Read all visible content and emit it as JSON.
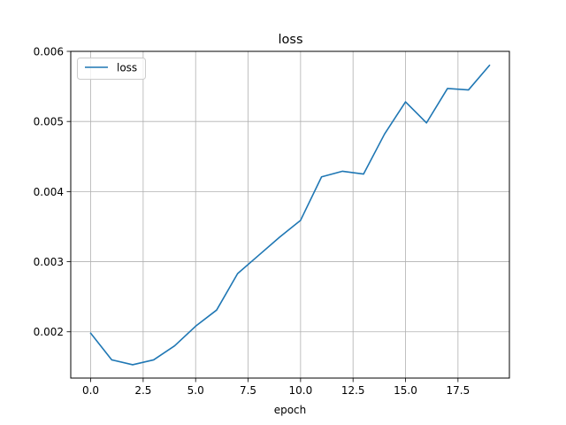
{
  "chart_data": {
    "type": "line",
    "title": "loss",
    "xlabel": "epoch",
    "ylabel": "",
    "xlim": [
      -0.95,
      19.95
    ],
    "ylim": [
      0.00134,
      0.006
    ],
    "grid": true,
    "legend_position": "top-left",
    "x_ticks": [
      0.0,
      2.5,
      5.0,
      7.5,
      10.0,
      12.5,
      15.0,
      17.5
    ],
    "x_tick_labels": [
      "0.0",
      "2.5",
      "5.0",
      "7.5",
      "10.0",
      "12.5",
      "15.0",
      "17.5"
    ],
    "y_ticks": [
      0.002,
      0.003,
      0.004,
      0.005,
      0.006
    ],
    "y_tick_labels": [
      "0.002",
      "0.003",
      "0.004",
      "0.005",
      "0.006"
    ],
    "series": [
      {
        "name": "loss",
        "color": "#1f77b4",
        "x": [
          0,
          1,
          2,
          3,
          4,
          5,
          6,
          7,
          8,
          9,
          10,
          11,
          12,
          13,
          14,
          15,
          16,
          17,
          18,
          19
        ],
        "y": [
          0.00198,
          0.0016,
          0.00153,
          0.0016,
          0.0018,
          0.00208,
          0.00231,
          0.00283,
          0.00309,
          0.00335,
          0.00359,
          0.00421,
          0.00429,
          0.00425,
          0.00482,
          0.00528,
          0.00498,
          0.00547,
          0.00545,
          0.0058
        ]
      }
    ]
  }
}
